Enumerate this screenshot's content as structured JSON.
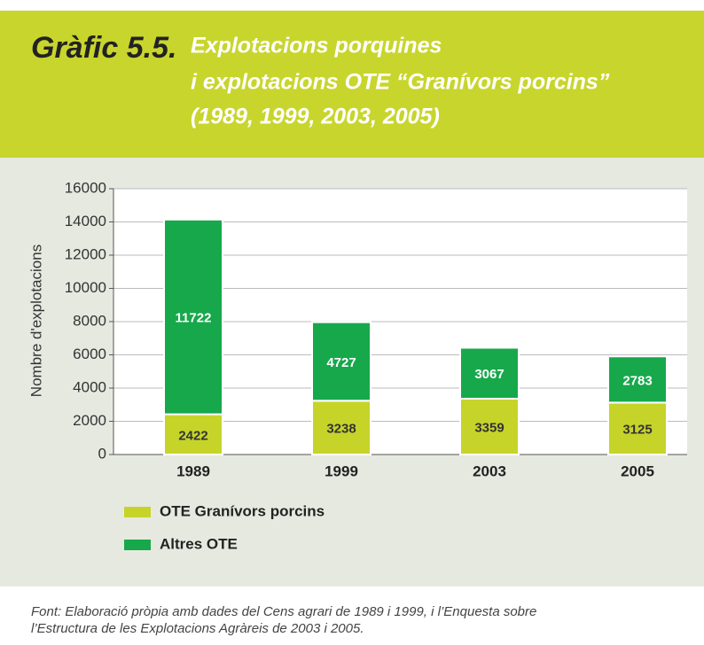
{
  "chart_data": {
    "type": "stacked_bar",
    "title": "Gràfic 5.5.",
    "subtitle": [
      "Explotacions porquines",
      "i explotacions OTE “Granívors porcins”",
      "(1989, 1999, 2003, 2005)"
    ],
    "y_label": "Nombre d'explotacions",
    "categories": [
      "1989",
      "1999",
      "2003",
      "2005"
    ],
    "series": [
      {
        "name": "OTE Granívors porcins",
        "color": "#c6d42a",
        "values": [
          2422,
          3238,
          3359,
          3125
        ]
      },
      {
        "name": "Altres OTE",
        "color": "#17a84b",
        "values": [
          11722,
          4727,
          3067,
          2783
        ]
      }
    ],
    "ylim": [
      0,
      16000
    ],
    "yticks": [
      0,
      2000,
      4000,
      6000,
      8000,
      10000,
      12000,
      14000,
      16000
    ],
    "source": [
      "Font: Elaboració pròpia amb dades del Cens agrari de 1989 i 1999, i l’Enquesta sobre",
      "l’Estructura de les Explotacions Agràreis de 2003 i 2005."
    ]
  }
}
